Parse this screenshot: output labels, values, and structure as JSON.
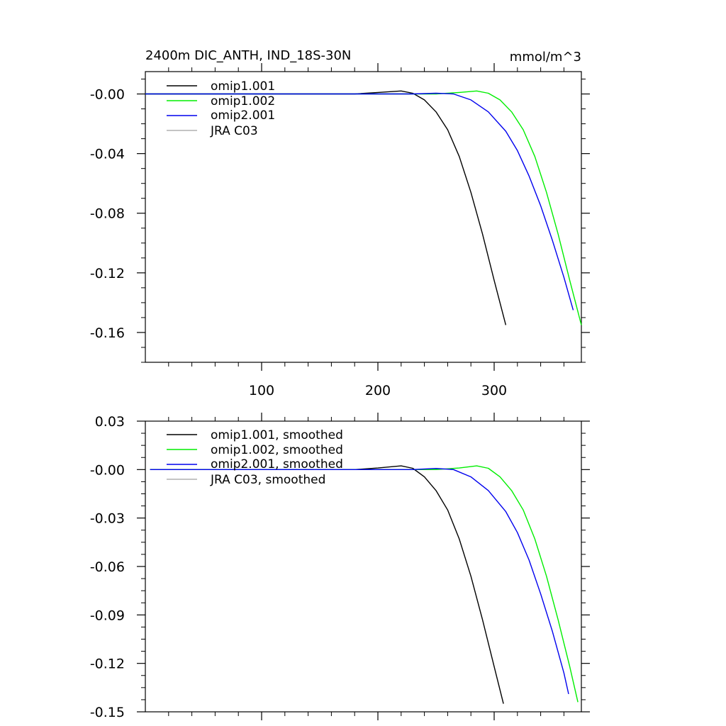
{
  "chart_data": [
    {
      "type": "line",
      "title_left": "2400m DIC_ANTH, IND_18S-30N",
      "title_right": "mmol/m^3",
      "xlim": [
        0,
        375
      ],
      "ylim": [
        -0.18,
        0.015
      ],
      "xticks": [
        100,
        200,
        300
      ],
      "xtick_labels": [
        "100",
        "200",
        "300"
      ],
      "yticks": [
        0,
        -0.04,
        -0.08,
        -0.12,
        -0.16
      ],
      "ytick_labels": [
        "-0.00",
        "-0.04",
        "-0.08",
        "-0.12",
        "-0.16"
      ],
      "legend": [
        "omip1.001",
        "omip1.002",
        "omip2.001",
        "JRA C03"
      ],
      "legend_placement": "top-left",
      "series": [
        {
          "name": "omip1.001",
          "color": "#000000",
          "x": [
            0,
            180,
            200,
            220,
            230,
            240,
            250,
            260,
            270,
            280,
            290,
            300,
            310
          ],
          "y": [
            0,
            0,
            0.001,
            0.002,
            0.0005,
            -0.004,
            -0.012,
            -0.024,
            -0.042,
            -0.066,
            -0.094,
            -0.125,
            -0.155
          ]
        },
        {
          "name": "omip1.002",
          "color": "#00ee00",
          "x": [
            0,
            250,
            270,
            285,
            295,
            305,
            315,
            325,
            335,
            345,
            355,
            365,
            375
          ],
          "y": [
            0,
            0,
            0.001,
            0.002,
            0.0005,
            -0.004,
            -0.012,
            -0.024,
            -0.042,
            -0.066,
            -0.094,
            -0.125,
            -0.155
          ]
        },
        {
          "name": "omip2.001",
          "color": "#0000ee",
          "x": [
            0,
            230,
            250,
            265,
            280,
            295,
            310,
            320,
            330,
            340,
            350,
            360,
            368
          ],
          "y": [
            0,
            0,
            0.0005,
            0,
            -0.004,
            -0.012,
            -0.025,
            -0.038,
            -0.055,
            -0.075,
            -0.098,
            -0.123,
            -0.145
          ]
        }
      ]
    },
    {
      "type": "line",
      "xlim": [
        0,
        375
      ],
      "ylim": [
        -0.15,
        0.03
      ],
      "xticks": [
        100,
        200,
        300
      ],
      "yticks": [
        0.03,
        0,
        -0.03,
        -0.06,
        -0.09,
        -0.12,
        -0.15
      ],
      "ytick_labels": [
        "0.03",
        "-0.00",
        "-0.03",
        "-0.06",
        "-0.09",
        "-0.12",
        "-0.15"
      ],
      "legend": [
        "omip1.001, smoothed",
        "omip1.002, smoothed",
        "omip2.001, smoothed",
        "JRA C03, smoothed"
      ],
      "legend_placement": "top-left",
      "series": [
        {
          "name": "omip1.001, smoothed",
          "color": "#000000",
          "x": [
            4,
            180,
            200,
            220,
            230,
            240,
            250,
            260,
            270,
            280,
            290,
            300,
            308
          ],
          "y": [
            0,
            0,
            0.001,
            0.0023,
            0.0008,
            -0.0045,
            -0.013,
            -0.025,
            -0.043,
            -0.066,
            -0.093,
            -0.122,
            -0.145
          ]
        },
        {
          "name": "omip1.002, smoothed",
          "color": "#00ee00",
          "x": [
            4,
            250,
            270,
            285,
            295,
            305,
            315,
            325,
            335,
            345,
            355,
            365,
            372
          ],
          "y": [
            0,
            0,
            0.001,
            0.0023,
            0.0008,
            -0.0045,
            -0.013,
            -0.025,
            -0.043,
            -0.066,
            -0.093,
            -0.122,
            -0.144
          ]
        },
        {
          "name": "omip2.001, smoothed",
          "color": "#0000ee",
          "x": [
            4,
            230,
            250,
            265,
            280,
            295,
            310,
            320,
            330,
            340,
            350,
            360,
            364
          ],
          "y": [
            0,
            0,
            0.0007,
            0,
            -0.0045,
            -0.013,
            -0.026,
            -0.039,
            -0.056,
            -0.077,
            -0.1,
            -0.126,
            -0.139
          ]
        }
      ]
    }
  ]
}
